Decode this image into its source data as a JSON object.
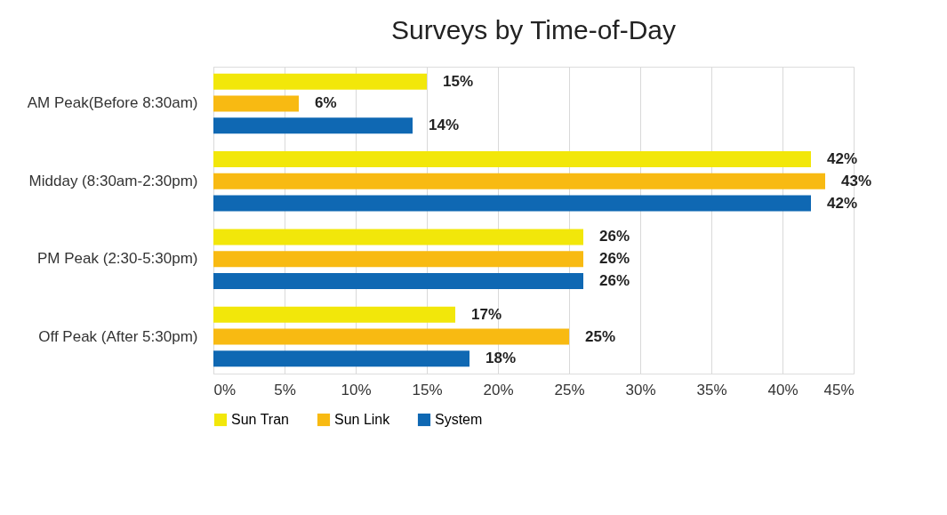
{
  "chart_data": {
    "type": "bar",
    "orientation": "horizontal",
    "title": "Surveys by Time-of-Day",
    "categories": [
      "AM  Peak(Before 8:30am)",
      "Midday (8:30am-2:30pm)",
      "PM  Peak (2:30-5:30pm)",
      "Off Peak (After 5:30pm)"
    ],
    "series": [
      {
        "name": "Sun Tran",
        "color": "#f2e70a",
        "values": [
          15,
          42,
          26,
          17
        ],
        "value_labels": [
          "15%",
          "42%",
          "26%",
          "17%"
        ]
      },
      {
        "name": "Sun Link",
        "color": "#f8ba12",
        "values": [
          6,
          43,
          26,
          25
        ],
        "value_labels": [
          "6%",
          "43%",
          "26%",
          "25%"
        ]
      },
      {
        "name": "System",
        "color": "#0f68b3",
        "values": [
          14,
          42,
          26,
          18
        ],
        "value_labels": [
          "14%",
          "42%",
          "26%",
          "18%"
        ]
      }
    ],
    "xlim": [
      0,
      45
    ],
    "xticks": [
      {
        "value": 0,
        "label": "0%"
      },
      {
        "value": 5,
        "label": "5%"
      },
      {
        "value": 10,
        "label": "10%"
      },
      {
        "value": 15,
        "label": "15%"
      },
      {
        "value": 20,
        "label": "20%"
      },
      {
        "value": 25,
        "label": "25%"
      },
      {
        "value": 30,
        "label": "30%"
      },
      {
        "value": 35,
        "label": "35%"
      },
      {
        "value": 40,
        "label": "40%"
      },
      {
        "value": 45,
        "label": "45%"
      }
    ],
    "grid": "x",
    "legend": "bottom"
  }
}
